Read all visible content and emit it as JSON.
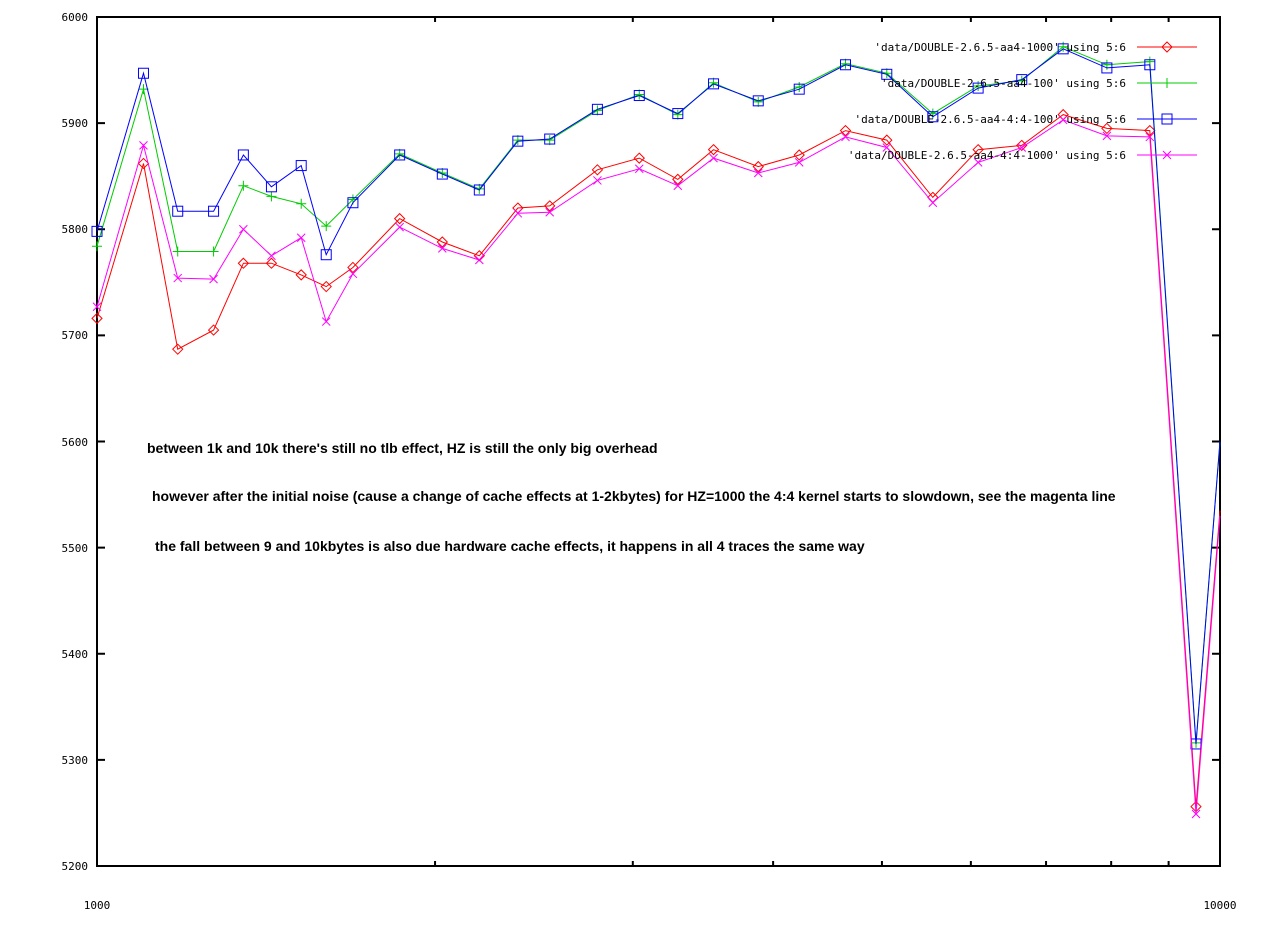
{
  "chart_data": {
    "type": "line",
    "title": "",
    "xlabel": "",
    "ylabel": "",
    "x_scale": "log",
    "xlim": [
      1000,
      10000
    ],
    "ylim": [
      5200,
      6000
    ],
    "grid": false,
    "legend_position": "top-right",
    "background_color": "#ffffff",
    "axis_color": "#000000",
    "y_ticks": [
      6000,
      5900,
      5800,
      5700,
      5600,
      5500,
      5400,
      5300,
      5200
    ],
    "y_tick_labels": [
      "6000",
      "5900",
      "5800",
      "5700",
      "5600",
      "5500",
      "5400",
      "5300",
      "5200"
    ],
    "x_major_ticks": [
      1000,
      10000
    ],
    "x_tick_labels": [
      "1000",
      "10000"
    ],
    "x_minor_ticks": [
      2000,
      3000,
      4000,
      5000,
      6000,
      7000,
      8000,
      9000
    ],
    "last_point_marker_clipped": true,
    "x": [
      1000,
      1100,
      1180,
      1270,
      1350,
      1430,
      1520,
      1600,
      1690,
      1860,
      2030,
      2190,
      2370,
      2530,
      2790,
      3040,
      3290,
      3540,
      3880,
      4220,
      4640,
      5050,
      5550,
      6090,
      6660,
      7250,
      7930,
      8660,
      9520,
      10000
    ],
    "series": [
      {
        "name": "'data/DOUBLE-2.6.5-aa4-1000' using 5:6",
        "color": "#ff0000",
        "marker": "diamond",
        "values": [
          5716,
          5862,
          5687,
          5705,
          5768,
          5768,
          5757,
          5746,
          5764,
          5810,
          5788,
          5775,
          5820,
          5822,
          5856,
          5867,
          5847,
          5875,
          5859,
          5870,
          5893,
          5884,
          5830,
          5875,
          5879,
          5908,
          5895,
          5893,
          5256,
          5535
        ]
      },
      {
        "name": "'data/DOUBLE-2.6.5-aa4-100' using 5:6",
        "color": "#00cc00",
        "marker": "plus",
        "values": [
          5784,
          5932,
          5779,
          5779,
          5841,
          5831,
          5824,
          5803,
          5828,
          5871,
          5853,
          5838,
          5884,
          5884,
          5912,
          5927,
          5908,
          5938,
          5920,
          5934,
          5956,
          5947,
          5909,
          5935,
          5940,
          5972,
          5955,
          5958,
          5316,
          5600
        ]
      },
      {
        "name": "'data/DOUBLE-2.6.5-aa4-4:4-100' using 5:6",
        "color": "#0000ff",
        "marker": "square",
        "values": [
          5798,
          5947,
          5817,
          5817,
          5870,
          5840,
          5860,
          5776,
          5825,
          5870,
          5852,
          5837,
          5883,
          5885,
          5913,
          5926,
          5909,
          5937,
          5921,
          5932,
          5955,
          5946,
          5906,
          5933,
          5941,
          5970,
          5952,
          5955,
          5315,
          5600
        ]
      },
      {
        "name": "'data/DOUBLE-2.6.5-aa4-4:4-1000' using 5:6",
        "color": "#ff00ff",
        "marker": "x",
        "values": [
          5727,
          5879,
          5754,
          5753,
          5800,
          5775,
          5792,
          5713,
          5758,
          5802,
          5782,
          5771,
          5815,
          5816,
          5846,
          5857,
          5841,
          5867,
          5853,
          5863,
          5887,
          5877,
          5825,
          5863,
          5877,
          5903,
          5888,
          5887,
          5249,
          5530
        ]
      }
    ],
    "annotations": [
      {
        "text": "between 1k and 10k there's still no tlb effect, HZ is still the only big overhead"
      },
      {
        "text": "however after the initial noise (cause a change of cache effects at 1-2kbytes) for HZ=1000 the 4:4 kernel starts to slowdown, see the magenta line"
      },
      {
        "text": "the fall between 9 and 10kbytes is also due hardware cache effects, it happens in all 4 traces the same way"
      }
    ]
  }
}
